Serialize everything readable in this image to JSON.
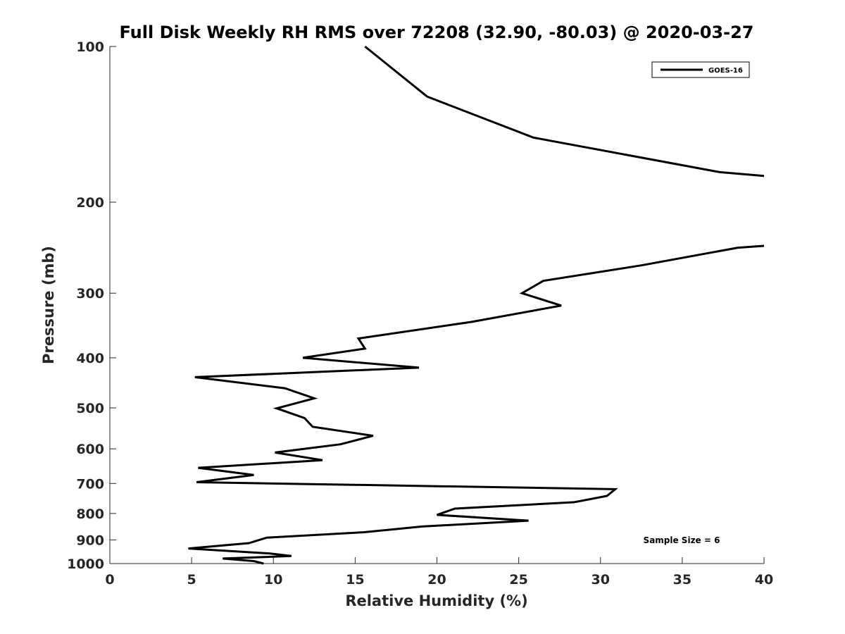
{
  "chart_data": {
    "type": "line",
    "title": "Full Disk Weekly RH RMS over 72208 (32.90, -80.03) @ 2020-03-27",
    "xlabel": "Relative Humidity (%)",
    "ylabel": "Pressure (mb)",
    "xlim": [
      0,
      40
    ],
    "ylim": [
      100,
      1000
    ],
    "y_scale": "log",
    "y_reversed": true,
    "grid": false,
    "legend_position": "top-right",
    "x_ticks": [
      0,
      5,
      10,
      15,
      20,
      25,
      30,
      35,
      40
    ],
    "y_ticks": [
      100,
      200,
      300,
      400,
      500,
      600,
      700,
      800,
      900,
      1000
    ],
    "annotation": "Sample Size = 6",
    "series": [
      {
        "name": "GOES-16",
        "color": "#000000",
        "segments": [
          [
            {
              "x": 15.6,
              "y": 100
            },
            {
              "x": 19.4,
              "y": 125
            },
            {
              "x": 25.9,
              "y": 150
            },
            {
              "x": 37.3,
              "y": 175
            },
            {
              "x": 40.0,
              "y": 178
            }
          ],
          [
            {
              "x": 40.0,
              "y": 243
            },
            {
              "x": 38.4,
              "y": 245
            },
            {
              "x": 32.5,
              "y": 265
            },
            {
              "x": 26.5,
              "y": 284
            },
            {
              "x": 25.2,
              "y": 300
            },
            {
              "x": 27.6,
              "y": 317
            },
            {
              "x": 22.1,
              "y": 341
            },
            {
              "x": 15.2,
              "y": 367
            },
            {
              "x": 15.6,
              "y": 384
            },
            {
              "x": 11.8,
              "y": 400
            },
            {
              "x": 18.9,
              "y": 418
            },
            {
              "x": 5.2,
              "y": 436
            },
            {
              "x": 10.7,
              "y": 458
            },
            {
              "x": 12.5,
              "y": 479
            },
            {
              "x": 10.2,
              "y": 501
            },
            {
              "x": 11.9,
              "y": 523
            },
            {
              "x": 12.4,
              "y": 544
            },
            {
              "x": 16.1,
              "y": 566
            },
            {
              "x": 14.1,
              "y": 588
            },
            {
              "x": 10.1,
              "y": 610
            },
            {
              "x": 13.0,
              "y": 631
            },
            {
              "x": 5.4,
              "y": 653
            },
            {
              "x": 8.8,
              "y": 674
            },
            {
              "x": 5.3,
              "y": 696
            },
            {
              "x": 30.9,
              "y": 718
            },
            {
              "x": 30.4,
              "y": 740
            },
            {
              "x": 28.4,
              "y": 761
            },
            {
              "x": 21.1,
              "y": 783
            },
            {
              "x": 20.0,
              "y": 805
            },
            {
              "x": 25.6,
              "y": 826
            },
            {
              "x": 19.1,
              "y": 848
            },
            {
              "x": 15.5,
              "y": 870
            },
            {
              "x": 9.6,
              "y": 891
            },
            {
              "x": 8.5,
              "y": 913
            },
            {
              "x": 4.8,
              "y": 935
            },
            {
              "x": 9.8,
              "y": 956
            },
            {
              "x": 11.1,
              "y": 967
            },
            {
              "x": 6.9,
              "y": 978
            },
            {
              "x": 8.8,
              "y": 989
            },
            {
              "x": 9.4,
              "y": 1000
            }
          ]
        ]
      }
    ]
  }
}
